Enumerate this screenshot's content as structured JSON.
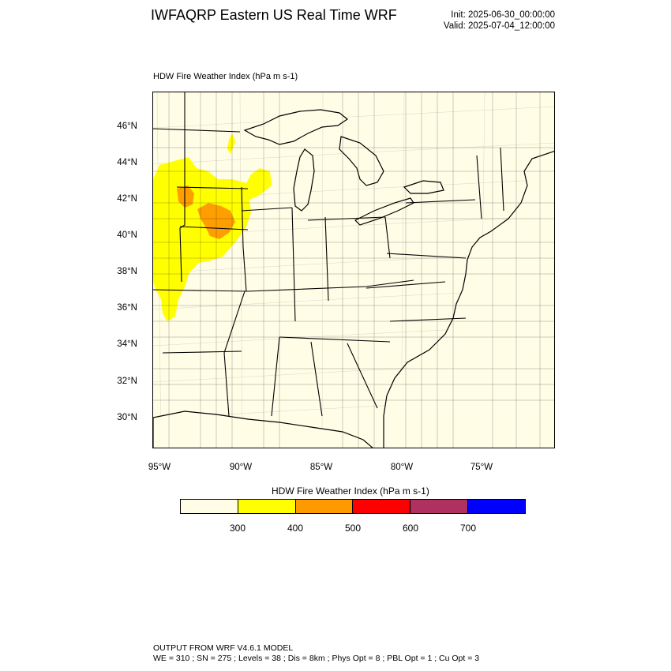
{
  "header": {
    "title": "IWFAQRP Eastern US Real Time WRF",
    "init": "Init: 2025-06-30_00:00:00",
    "valid": "Valid: 2025-07-04_12:00:00"
  },
  "map": {
    "field_title": "HDW Fire Weather Index   (hPa m s-1)",
    "lat_labels": [
      "46°N",
      "44°N",
      "42°N",
      "40°N",
      "38°N",
      "36°N",
      "34°N",
      "32°N",
      "30°N"
    ],
    "lon_labels": [
      "95°W",
      "90°W",
      "85°W",
      "80°W",
      "75°W"
    ],
    "colors": {
      "background": "#fffde6",
      "yellow": "#ffff00",
      "orange": "#ff9900",
      "lake": "#fffde6"
    }
  },
  "colorbar": {
    "title": "HDW Fire Weather Index (hPa m s-1)",
    "colors": [
      "#fffde6",
      "#ffff00",
      "#ff9900",
      "#ff0000",
      "#b03060",
      "#0000ff"
    ],
    "labels": [
      "300",
      "400",
      "500",
      "600",
      "700"
    ]
  },
  "footer": {
    "line1": "OUTPUT FROM WRF V4.6.1 MODEL",
    "line2": "WE = 310 ; SN = 275 ; Levels = 38 ; Dis = 8km ; Phys Opt = 8 ; PBL Opt = 1 ; Cu Opt = 3"
  }
}
